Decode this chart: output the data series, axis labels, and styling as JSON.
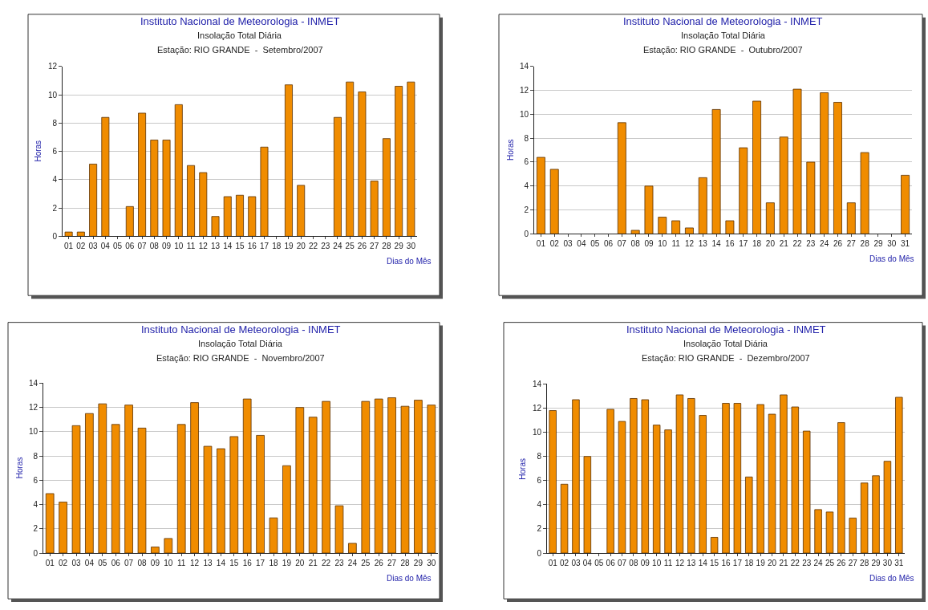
{
  "chart_data": [
    {
      "type": "bar",
      "title": "Instituto Nacional de Meteorologia - INMET",
      "subtitle": "Insolação Total Diária\nEstação: RIO GRANDE  -  Setembro/2007",
      "xlabel": "Dias do Mês",
      "ylabel": "Horas",
      "color": "#f08c00",
      "ylim": [
        0,
        12
      ],
      "yticks": [
        0,
        2,
        4,
        6,
        8,
        10,
        12
      ],
      "grid": "y",
      "categories": [
        "01",
        "02",
        "03",
        "04",
        "05",
        "06",
        "07",
        "08",
        "09",
        "10",
        "11",
        "12",
        "13",
        "14",
        "15",
        "16",
        "17",
        "18",
        "19",
        "20",
        "22",
        "23",
        "24",
        "25",
        "26",
        "27",
        "28",
        "29",
        "30"
      ],
      "values": [
        0.3,
        0.3,
        5.1,
        8.4,
        null,
        2.1,
        8.7,
        6.8,
        6.8,
        9.3,
        5.0,
        4.5,
        1.4,
        2.8,
        2.9,
        2.8,
        6.3,
        null,
        10.7,
        3.6,
        null,
        null,
        8.4,
        10.9,
        10.2,
        3.9,
        6.9,
        10.6,
        10.9
      ]
    },
    {
      "type": "bar",
      "title": "Instituto Nacional de Meteorologia - INMET",
      "subtitle": "Insolação Total Diária\nEstação: RIO GRANDE  -  Outubro/2007",
      "xlabel": "Dias do Mês",
      "ylabel": "Horas",
      "color": "#f08c00",
      "ylim": [
        0,
        14
      ],
      "yticks": [
        0,
        2,
        4,
        6,
        8,
        10,
        12,
        14
      ],
      "grid": "y",
      "categories": [
        "01",
        "02",
        "03",
        "04",
        "05",
        "06",
        "07",
        "08",
        "09",
        "10",
        "11",
        "12",
        "13",
        "14",
        "16",
        "17",
        "18",
        "20",
        "21",
        "22",
        "23",
        "24",
        "26",
        "27",
        "28",
        "29",
        "30",
        "31"
      ],
      "values": [
        6.4,
        5.4,
        null,
        null,
        null,
        null,
        9.3,
        0.3,
        4.0,
        1.4,
        1.1,
        0.5,
        4.7,
        10.4,
        1.1,
        7.2,
        11.1,
        2.6,
        8.1,
        12.1,
        6.0,
        11.8,
        11.0,
        2.6,
        6.8,
        null,
        null,
        4.9
      ]
    },
    {
      "type": "bar",
      "title": "Instituto Nacional de Meteorologia - INMET",
      "subtitle": "Insolação Total Diária\nEstação: RIO GRANDE  -  Novembro/2007",
      "xlabel": "Dias do Mês",
      "ylabel": "Horas",
      "color": "#f08c00",
      "ylim": [
        0,
        14
      ],
      "yticks": [
        0,
        2,
        4,
        6,
        8,
        10,
        12,
        14
      ],
      "grid": "y",
      "categories": [
        "01",
        "02",
        "03",
        "04",
        "05",
        "06",
        "07",
        "08",
        "09",
        "10",
        "11",
        "12",
        "13",
        "14",
        "15",
        "16",
        "17",
        "18",
        "19",
        "20",
        "21",
        "22",
        "23",
        "24",
        "25",
        "26",
        "27",
        "28",
        "29",
        "30"
      ],
      "values": [
        4.9,
        4.2,
        10.5,
        11.5,
        12.3,
        10.6,
        12.2,
        10.3,
        0.5,
        1.2,
        10.6,
        12.4,
        8.8,
        8.6,
        9.6,
        12.7,
        9.7,
        2.9,
        7.2,
        12.0,
        11.2,
        12.5,
        3.9,
        0.8,
        12.5,
        12.7,
        12.8,
        12.1,
        12.6,
        12.2
      ]
    },
    {
      "type": "bar",
      "title": "Instituto Nacional de Meteorologia - INMET",
      "subtitle": "Insolação Total Diária\nEstação: RIO GRANDE  -  Dezembro/2007",
      "xlabel": "Dias do Mês",
      "ylabel": "Horas",
      "color": "#f08c00",
      "ylim": [
        0,
        14
      ],
      "yticks": [
        0,
        2,
        4,
        6,
        8,
        10,
        12,
        14
      ],
      "grid": "y",
      "categories": [
        "01",
        "02",
        "03",
        "04",
        "05",
        "06",
        "07",
        "08",
        "09",
        "10",
        "11",
        "12",
        "13",
        "14",
        "15",
        "16",
        "17",
        "18",
        "19",
        "20",
        "21",
        "22",
        "23",
        "24",
        "25",
        "26",
        "27",
        "28",
        "29",
        "30",
        "31"
      ],
      "values": [
        11.8,
        5.7,
        12.7,
        8.0,
        null,
        11.9,
        10.9,
        12.8,
        12.7,
        10.6,
        10.2,
        13.1,
        12.8,
        11.4,
        1.3,
        12.4,
        12.4,
        6.3,
        12.3,
        11.5,
        13.1,
        12.1,
        10.1,
        3.6,
        3.4,
        10.8,
        2.9,
        5.8,
        6.4,
        7.6,
        12.9
      ]
    }
  ]
}
